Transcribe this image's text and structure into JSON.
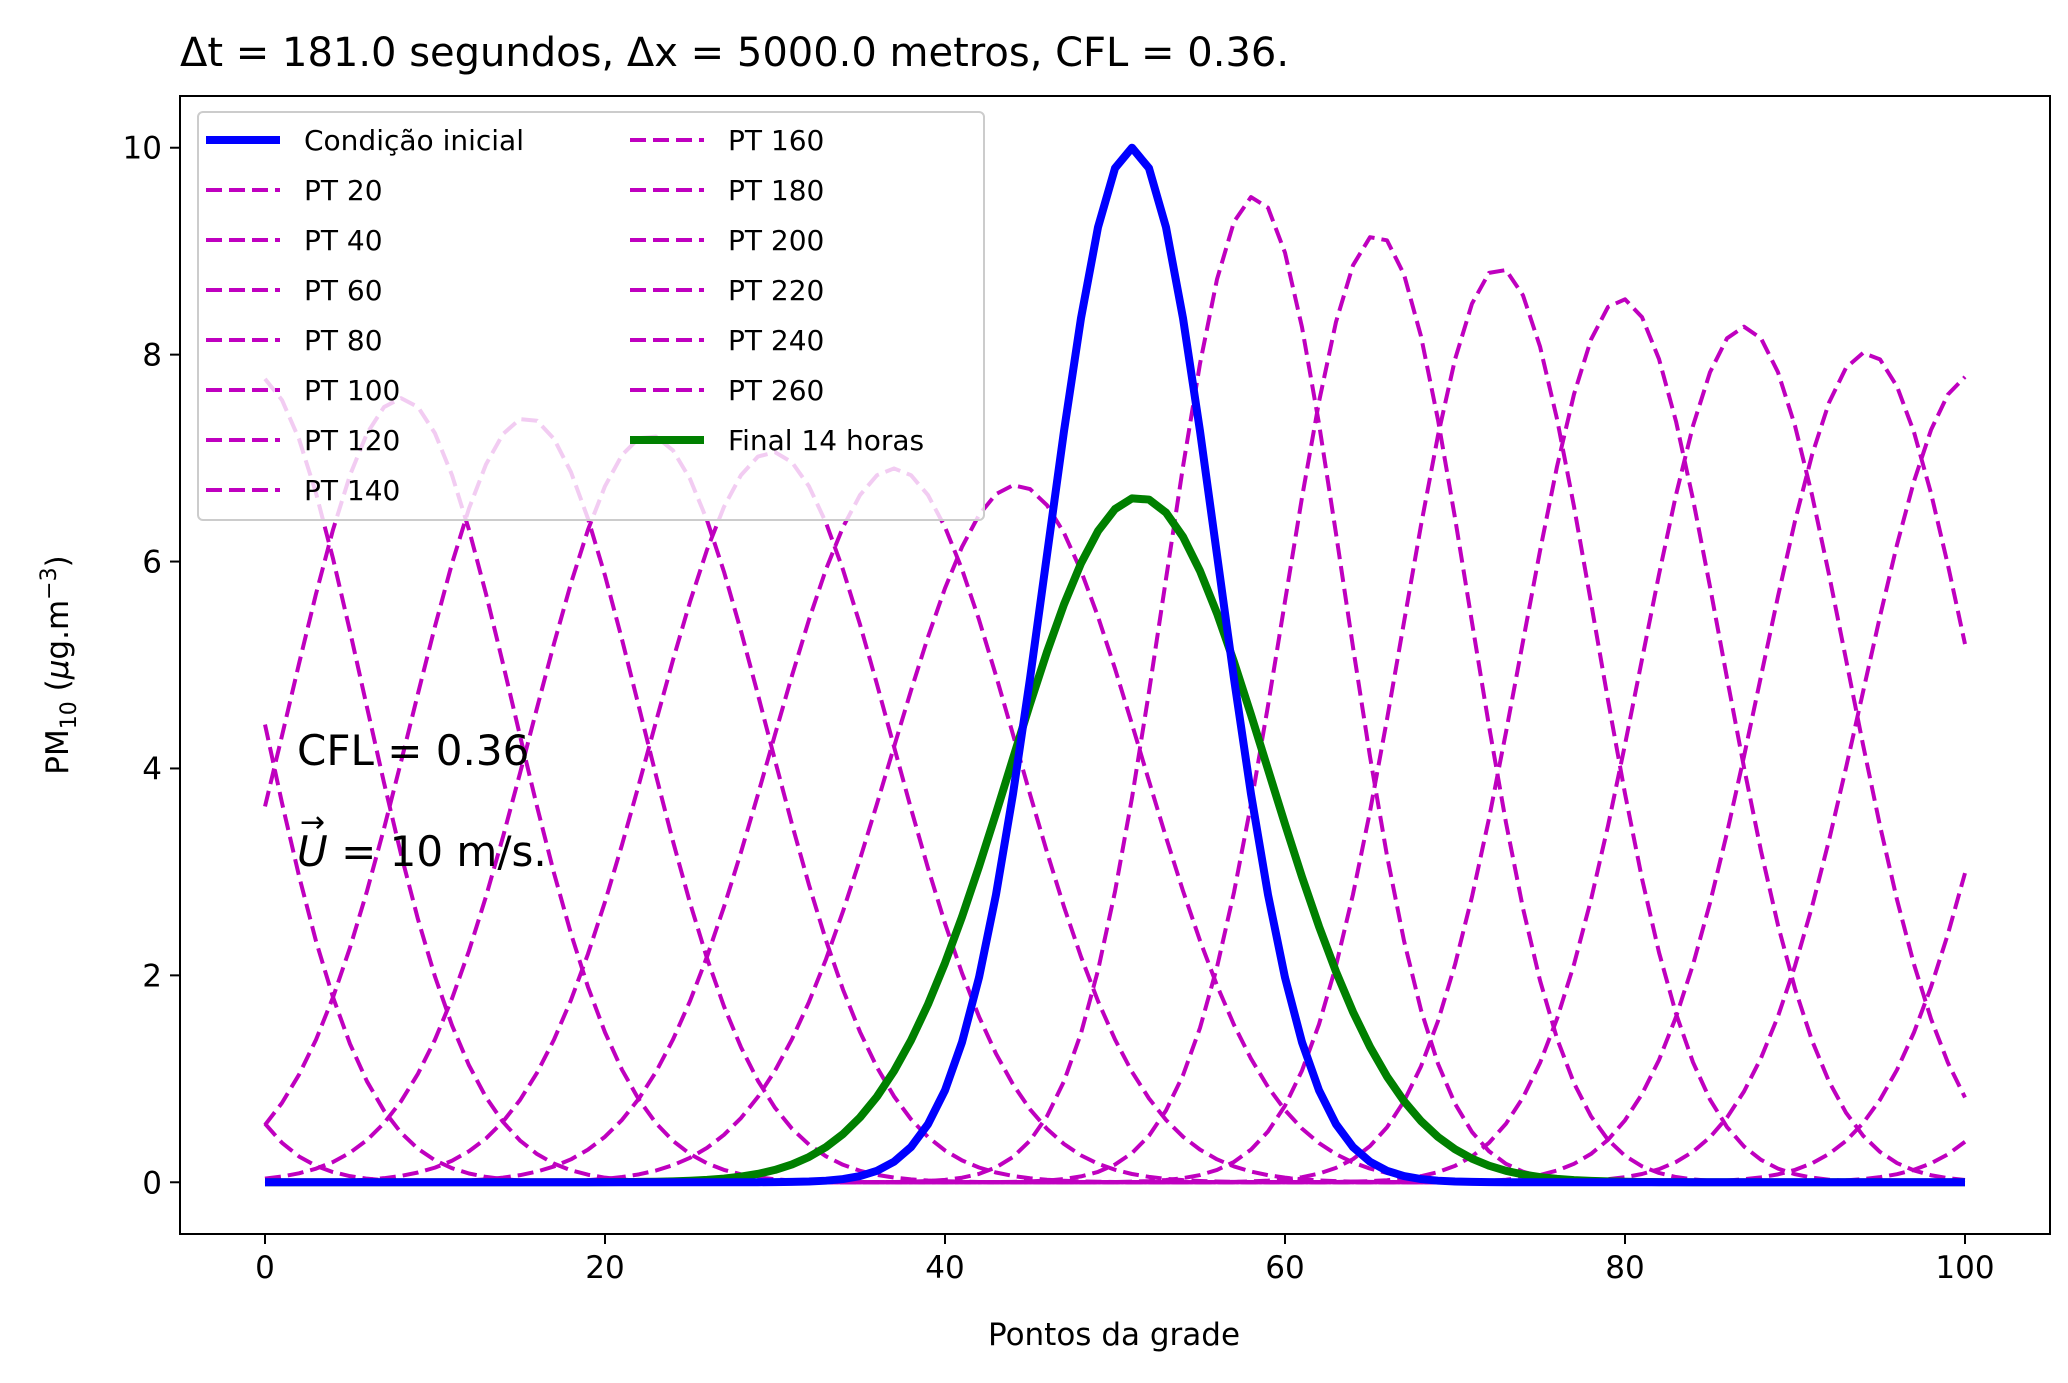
{
  "chart_data": {
    "type": "line",
    "title": "Δt = 181.0 segundos, Δx = 5000.0 metros, CFL = 0.36.",
    "xlabel": "Pontos da grade",
    "ylabel_main": "PM",
    "ylabel_sub": "10",
    "ylabel_rest_a": " (",
    "ylabel_mu": "μ",
    "ylabel_rest_b": "g.m",
    "ylabel_sup": "−3",
    "ylabel_close": ")",
    "xlim": [
      -5,
      105
    ],
    "ylim": [
      -0.5,
      10.5
    ],
    "xticks": [
      0,
      20,
      40,
      60,
      80,
      100
    ],
    "yticks": [
      0,
      2,
      4,
      6,
      8,
      10
    ],
    "grid": false,
    "legend_position": "upper-left",
    "annotation_line1": "CFL = 0.36",
    "annotation_line2_var": "U",
    "annotation_line2_arrow": "→",
    "annotation_line2_rest": " = 10 m/s.",
    "colors": {
      "initial": "#0000ff",
      "intermediate": "#bf00bf",
      "final": "#008000"
    },
    "gaussian_model": {
      "x_points": 101,
      "initial_center": 51,
      "initial_peak": 10.0,
      "initial_sigma": 5.0,
      "domain_period": 101
    },
    "series": [
      {
        "name": "Condição inicial",
        "style": "solid-thick",
        "center": 51.0,
        "peak": 10.0
      },
      {
        "name": "PT 20",
        "style": "dashed",
        "center": 58.2,
        "peak": 9.53
      },
      {
        "name": "PT 40",
        "style": "dashed",
        "center": 65.4,
        "peak": 9.16
      },
      {
        "name": "PT 60",
        "style": "dashed",
        "center": 72.6,
        "peak": 8.84
      },
      {
        "name": "PT 80",
        "style": "dashed",
        "center": 79.8,
        "peak": 8.54
      },
      {
        "name": "PT 100",
        "style": "dashed",
        "center": 87.0,
        "peak": 8.27
      },
      {
        "name": "PT 120",
        "style": "dashed",
        "center": 94.2,
        "peak": 8.02
      },
      {
        "name": "PT 140",
        "style": "dashed",
        "center": 100.4,
        "peak": 7.8
      },
      {
        "name": "PT 160",
        "style": "dashed",
        "center": 8.0,
        "peak": 7.58
      },
      {
        "name": "PT 180",
        "style": "dashed",
        "center": 15.4,
        "peak": 7.39
      },
      {
        "name": "PT 200",
        "style": "dashed",
        "center": 22.6,
        "peak": 7.22
      },
      {
        "name": "PT 220",
        "style": "dashed",
        "center": 29.8,
        "peak": 7.06
      },
      {
        "name": "PT 240",
        "style": "dashed",
        "center": 37.0,
        "peak": 6.9
      },
      {
        "name": "PT 260",
        "style": "dashed",
        "center": 44.2,
        "peak": 6.74
      },
      {
        "name": "Final 14 horas",
        "style": "solid-thick",
        "center": 51.4,
        "peak": 6.62
      }
    ]
  }
}
